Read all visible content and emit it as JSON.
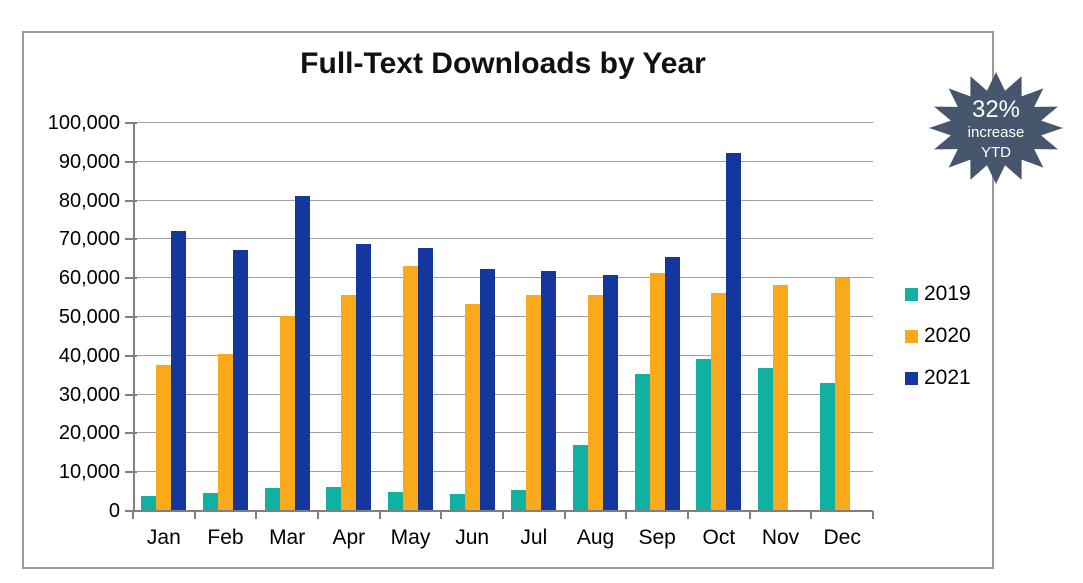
{
  "title": "Full-Text Downloads by Year",
  "badge": {
    "line1": "32%",
    "line2": "increase",
    "line3": "YTD",
    "bg_color": "#46566C",
    "text_color": "#ffffff"
  },
  "frame": {
    "border_color": "#999999"
  },
  "colors": {
    "gridline": "#a0a0a0",
    "axis": "#808080",
    "text": "#000000"
  },
  "chart_data": {
    "type": "bar",
    "title": "Full-Text Downloads by Year",
    "categories": [
      "Jan",
      "Feb",
      "Mar",
      "Apr",
      "May",
      "Jun",
      "Jul",
      "Aug",
      "Sep",
      "Oct",
      "Nov",
      "Dec"
    ],
    "series": [
      {
        "name": "2019",
        "color": "#10B0A3",
        "values": [
          3500,
          4300,
          5800,
          6000,
          4700,
          4100,
          5200,
          16800,
          35000,
          39000,
          36700,
          32800
        ]
      },
      {
        "name": "2020",
        "color": "#FAA91A",
        "values": [
          37500,
          40200,
          50000,
          55500,
          63000,
          53200,
          55500,
          55500,
          61000,
          56000,
          58000,
          59700
        ]
      },
      {
        "name": "2021",
        "color": "#14379E",
        "values": [
          71800,
          67000,
          81000,
          68500,
          67600,
          62000,
          61500,
          60500,
          65300,
          92000,
          null,
          null
        ]
      }
    ],
    "ylim": [
      0,
      100000
    ],
    "ytick_step": 10000,
    "ytick_labels": [
      "0",
      "10,000",
      "20,000",
      "30,000",
      "40,000",
      "50,000",
      "60,000",
      "70,000",
      "80,000",
      "90,000",
      "100,000"
    ],
    "grid": true,
    "legend_position": "right",
    "annotation": "32% increase YTD"
  }
}
